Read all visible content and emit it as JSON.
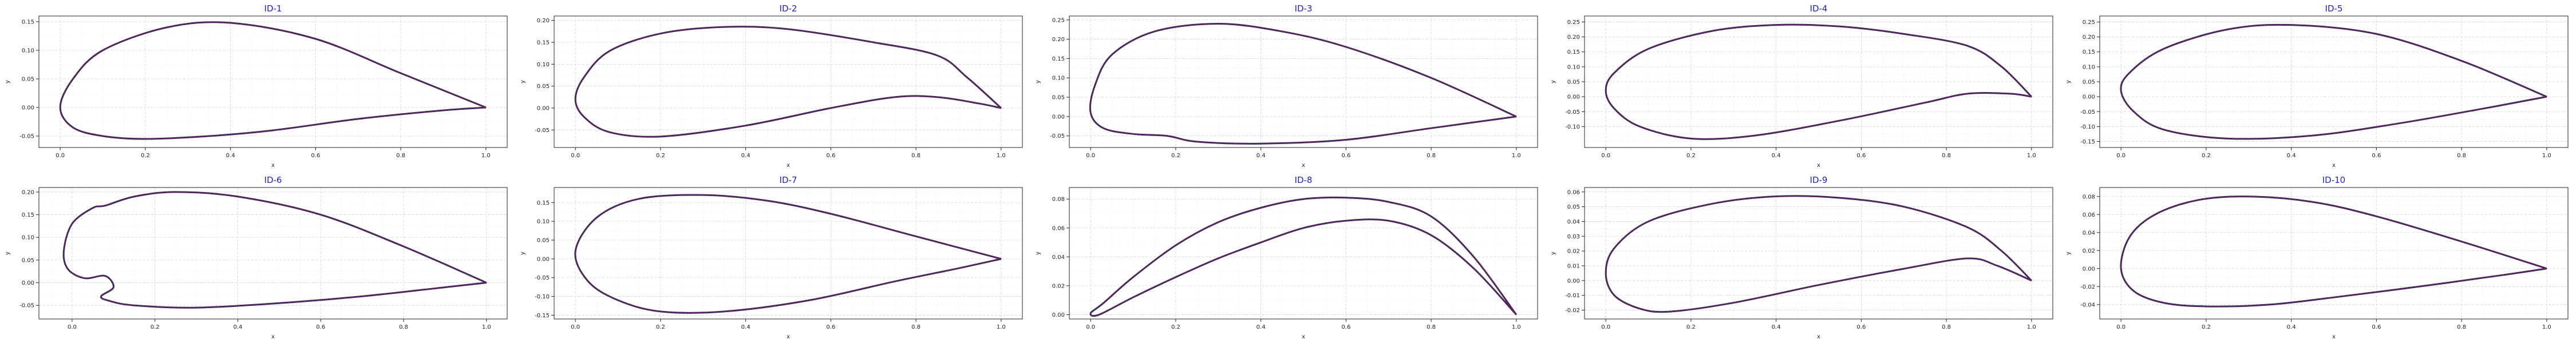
{
  "chart_data": [
    {
      "type": "line",
      "title": "ID-1",
      "xlabel": "x",
      "ylabel": "y",
      "grid": true,
      "xlim": [
        -0.05,
        1.05
      ],
      "ylim": [
        -0.07,
        0.16
      ],
      "xticks": [
        "0.0",
        "0.2",
        "0.4",
        "0.6",
        "0.8",
        "1.0"
      ],
      "xtick_values": [
        0,
        0.2,
        0.4,
        0.6,
        0.8,
        1.0
      ],
      "yticks": [
        "-0.05",
        "0.00",
        "0.05",
        "0.10",
        "0.15"
      ],
      "ytick_values": [
        -0.05,
        0,
        0.05,
        0.1,
        0.15
      ],
      "series": [
        {
          "x": [
            1.0,
            0.8,
            0.6,
            0.4,
            0.25,
            0.1,
            0.03,
            0.0,
            0.03,
            0.1,
            0.2,
            0.35,
            0.5,
            0.7,
            0.9,
            1.0
          ],
          "y": [
            0.0,
            0.06,
            0.12,
            0.148,
            0.14,
            0.1,
            0.05,
            0.0,
            -0.035,
            -0.05,
            -0.055,
            -0.05,
            -0.04,
            -0.02,
            -0.005,
            0.0
          ]
        }
      ]
    },
    {
      "type": "line",
      "title": "ID-2",
      "xlabel": "x",
      "ylabel": "y",
      "grid": true,
      "xlim": [
        -0.05,
        1.05
      ],
      "ylim": [
        -0.09,
        0.21
      ],
      "xticks": [
        "0.0",
        "0.2",
        "0.4",
        "0.6",
        "0.8",
        "1.0"
      ],
      "xtick_values": [
        0,
        0.2,
        0.4,
        0.6,
        0.8,
        1.0
      ],
      "yticks": [
        "-0.05",
        "0.00",
        "0.05",
        "0.10",
        "0.15",
        "0.20"
      ],
      "ytick_values": [
        -0.05,
        0,
        0.05,
        0.1,
        0.15,
        0.2
      ],
      "series": [
        {
          "x": [
            1.0,
            0.92,
            0.85,
            0.7,
            0.5,
            0.35,
            0.2,
            0.08,
            0.02,
            0.0,
            0.02,
            0.08,
            0.2,
            0.4,
            0.6,
            0.75,
            0.85,
            0.95,
            1.0
          ],
          "y": [
            0.0,
            0.07,
            0.12,
            0.15,
            0.18,
            0.185,
            0.17,
            0.13,
            0.07,
            0.02,
            -0.02,
            -0.055,
            -0.065,
            -0.04,
            0.0,
            0.025,
            0.025,
            0.01,
            0.0
          ]
        }
      ]
    },
    {
      "type": "line",
      "title": "ID-3",
      "xlabel": "x",
      "ylabel": "y",
      "grid": true,
      "xlim": [
        -0.05,
        1.05
      ],
      "ylim": [
        -0.08,
        0.26
      ],
      "xticks": [
        "0.0",
        "0.2",
        "0.4",
        "0.6",
        "0.8",
        "1.0"
      ],
      "xtick_values": [
        0,
        0.2,
        0.4,
        0.6,
        0.8,
        1.0
      ],
      "yticks": [
        "-0.05",
        "0.00",
        "0.05",
        "0.10",
        "0.15",
        "0.20",
        "0.25"
      ],
      "ytick_values": [
        -0.05,
        0,
        0.05,
        0.1,
        0.15,
        0.2,
        0.25
      ],
      "series": [
        {
          "x": [
            1.0,
            0.8,
            0.6,
            0.45,
            0.3,
            0.15,
            0.05,
            0.01,
            0.0,
            0.03,
            0.1,
            0.18,
            0.25,
            0.4,
            0.6,
            0.8,
            1.0
          ],
          "y": [
            0.0,
            0.1,
            0.18,
            0.22,
            0.24,
            0.22,
            0.16,
            0.08,
            0.01,
            -0.03,
            -0.045,
            -0.05,
            -0.065,
            -0.07,
            -0.06,
            -0.03,
            0.0
          ]
        }
      ]
    },
    {
      "type": "line",
      "title": "ID-4",
      "xlabel": "x",
      "ylabel": "y",
      "grid": true,
      "xlim": [
        -0.05,
        1.05
      ],
      "ylim": [
        -0.17,
        0.27
      ],
      "xticks": [
        "0.0",
        "0.2",
        "0.4",
        "0.6",
        "0.8",
        "1.0"
      ],
      "xtick_values": [
        0,
        0.2,
        0.4,
        0.6,
        0.8,
        1.0
      ],
      "yticks": [
        "-0.10",
        "-0.05",
        "0.00",
        "0.05",
        "0.10",
        "0.15",
        "0.20",
        "0.25"
      ],
      "ytick_values": [
        -0.1,
        -0.05,
        0,
        0.05,
        0.1,
        0.15,
        0.2,
        0.25
      ],
      "series": [
        {
          "x": [
            1.0,
            0.93,
            0.85,
            0.7,
            0.55,
            0.4,
            0.25,
            0.1,
            0.02,
            0.0,
            0.02,
            0.08,
            0.2,
            0.35,
            0.55,
            0.75,
            0.85,
            0.95,
            1.0
          ],
          "y": [
            0.0,
            0.1,
            0.17,
            0.21,
            0.235,
            0.24,
            0.22,
            0.16,
            0.08,
            0.02,
            -0.04,
            -0.1,
            -0.14,
            -0.13,
            -0.08,
            -0.02,
            0.01,
            0.01,
            0.0
          ]
        }
      ]
    },
    {
      "type": "line",
      "title": "ID-5",
      "xlabel": "x",
      "ylabel": "y",
      "grid": true,
      "xlim": [
        -0.05,
        1.05
      ],
      "ylim": [
        -0.17,
        0.27
      ],
      "xticks": [
        "0.0",
        "0.2",
        "0.4",
        "0.6",
        "0.8",
        "1.0"
      ],
      "xtick_values": [
        0,
        0.2,
        0.4,
        0.6,
        0.8,
        1.0
      ],
      "yticks": [
        "-0.15",
        "-0.10",
        "-0.05",
        "0.00",
        "0.05",
        "0.10",
        "0.15",
        "0.20",
        "0.25"
      ],
      "ytick_values": [
        -0.15,
        -0.1,
        -0.05,
        0,
        0.05,
        0.1,
        0.15,
        0.2,
        0.25
      ],
      "series": [
        {
          "x": [
            1.0,
            0.8,
            0.6,
            0.4,
            0.25,
            0.1,
            0.02,
            0.0,
            0.03,
            0.1,
            0.25,
            0.45,
            0.65,
            0.85,
            1.0
          ],
          "y": [
            0.0,
            0.12,
            0.21,
            0.24,
            0.225,
            0.16,
            0.08,
            0.02,
            -0.05,
            -0.11,
            -0.14,
            -0.13,
            -0.09,
            -0.04,
            0.0
          ]
        }
      ]
    },
    {
      "type": "line",
      "title": "ID-6",
      "xlabel": "x",
      "ylabel": "y",
      "grid": true,
      "xlim": [
        -0.08,
        1.05
      ],
      "ylim": [
        -0.08,
        0.21
      ],
      "xticks": [
        "0.0",
        "0.2",
        "0.4",
        "0.6",
        "0.8",
        "1.0"
      ],
      "xtick_values": [
        0,
        0.2,
        0.4,
        0.6,
        0.8,
        1.0
      ],
      "yticks": [
        "-0.05",
        "0.00",
        "0.05",
        "0.10",
        "0.15",
        "0.20"
      ],
      "ytick_values": [
        -0.05,
        0,
        0.05,
        0.1,
        0.15,
        0.2
      ],
      "series": [
        {
          "x": [
            1.0,
            0.8,
            0.6,
            0.4,
            0.25,
            0.15,
            0.08,
            0.05,
            0.0,
            -0.02,
            -0.01,
            0.03,
            0.08,
            0.1,
            0.07,
            0.09,
            0.15,
            0.3,
            0.5,
            0.7,
            0.9,
            1.0
          ],
          "y": [
            0.0,
            0.08,
            0.15,
            0.19,
            0.2,
            0.19,
            0.17,
            0.165,
            0.13,
            0.07,
            0.03,
            0.01,
            0.015,
            -0.01,
            -0.03,
            -0.04,
            -0.05,
            -0.055,
            -0.045,
            -0.03,
            -0.01,
            0.0
          ]
        }
      ]
    },
    {
      "type": "line",
      "title": "ID-7",
      "xlabel": "x",
      "ylabel": "y",
      "grid": true,
      "xlim": [
        -0.05,
        1.05
      ],
      "ylim": [
        -0.16,
        0.19
      ],
      "xticks": [
        "0.0",
        "0.2",
        "0.4",
        "0.6",
        "0.8",
        "1.0"
      ],
      "xtick_values": [
        0,
        0.2,
        0.4,
        0.6,
        0.8,
        1.0
      ],
      "yticks": [
        "-0.15",
        "-0.10",
        "-0.05",
        "0.00",
        "0.05",
        "0.10",
        "0.15"
      ],
      "ytick_values": [
        -0.15,
        -0.1,
        -0.05,
        0,
        0.05,
        0.1,
        0.15
      ],
      "series": [
        {
          "x": [
            1.0,
            0.8,
            0.6,
            0.45,
            0.3,
            0.15,
            0.05,
            0.0,
            0.03,
            0.1,
            0.2,
            0.35,
            0.55,
            0.75,
            0.9,
            1.0
          ],
          "y": [
            0.0,
            0.06,
            0.12,
            0.155,
            0.17,
            0.16,
            0.11,
            0.02,
            -0.06,
            -0.11,
            -0.14,
            -0.14,
            -0.11,
            -0.06,
            -0.025,
            0.0
          ]
        }
      ]
    },
    {
      "type": "line",
      "title": "ID-8",
      "xlabel": "x",
      "ylabel": "y",
      "grid": true,
      "xlim": [
        -0.05,
        1.05
      ],
      "ylim": [
        -0.003,
        0.088
      ],
      "xticks": [
        "0.0",
        "0.2",
        "0.4",
        "0.6",
        "0.8",
        "1.0"
      ],
      "xtick_values": [
        0,
        0.2,
        0.4,
        0.6,
        0.8,
        1.0
      ],
      "yticks": [
        "0.00",
        "0.02",
        "0.04",
        "0.06",
        "0.08"
      ],
      "ytick_values": [
        0,
        0.02,
        0.04,
        0.06,
        0.08
      ],
      "series": [
        {
          "x": [
            1.0,
            0.9,
            0.8,
            0.7,
            0.6,
            0.5,
            0.4,
            0.3,
            0.2,
            0.1,
            0.03,
            0.0,
            0.02,
            0.1,
            0.2,
            0.3,
            0.4,
            0.5,
            0.6,
            0.7,
            0.8,
            0.9,
            1.0
          ],
          "y": [
            0.0,
            0.04,
            0.068,
            0.078,
            0.081,
            0.08,
            0.074,
            0.064,
            0.048,
            0.026,
            0.008,
            0.001,
            0.0,
            0.012,
            0.026,
            0.039,
            0.05,
            0.06,
            0.065,
            0.065,
            0.055,
            0.032,
            0.0
          ]
        }
      ]
    },
    {
      "type": "line",
      "title": "ID-9",
      "xlabel": "x",
      "ylabel": "y",
      "grid": true,
      "xlim": [
        -0.05,
        1.05
      ],
      "ylim": [
        -0.026,
        0.063
      ],
      "xticks": [
        "0.0",
        "0.2",
        "0.4",
        "0.6",
        "0.8",
        "1.0"
      ],
      "xtick_values": [
        0,
        0.2,
        0.4,
        0.6,
        0.8,
        1.0
      ],
      "yticks": [
        "-0.02",
        "-0.01",
        "0.00",
        "0.01",
        "0.02",
        "0.03",
        "0.04",
        "0.05",
        "0.06"
      ],
      "ytick_values": [
        -0.02,
        -0.01,
        0,
        0.01,
        0.02,
        0.03,
        0.04,
        0.05,
        0.06
      ],
      "series": [
        {
          "x": [
            1.0,
            0.93,
            0.85,
            0.7,
            0.55,
            0.4,
            0.25,
            0.1,
            0.02,
            0.0,
            0.02,
            0.08,
            0.15,
            0.3,
            0.5,
            0.7,
            0.85,
            0.92,
            1.0
          ],
          "y": [
            0.0,
            0.02,
            0.036,
            0.05,
            0.056,
            0.057,
            0.052,
            0.04,
            0.022,
            0.005,
            -0.01,
            -0.019,
            -0.021,
            -0.015,
            -0.003,
            0.008,
            0.015,
            0.01,
            0.0
          ]
        }
      ]
    },
    {
      "type": "line",
      "title": "ID-10",
      "xlabel": "x",
      "ylabel": "y",
      "grid": true,
      "xlim": [
        -0.05,
        1.05
      ],
      "ylim": [
        -0.056,
        0.09
      ],
      "xticks": [
        "0.0",
        "0.2",
        "0.4",
        "0.6",
        "0.8",
        "1.0"
      ],
      "xtick_values": [
        0,
        0.2,
        0.4,
        0.6,
        0.8,
        1.0
      ],
      "yticks": [
        "-0.04",
        "-0.02",
        "0.00",
        "0.02",
        "0.04",
        "0.06",
        "0.08"
      ],
      "ytick_values": [
        -0.04,
        -0.02,
        0,
        0.02,
        0.04,
        0.06,
        0.08
      ],
      "series": [
        {
          "x": [
            1.0,
            0.8,
            0.6,
            0.45,
            0.3,
            0.18,
            0.08,
            0.02,
            0.0,
            0.03,
            0.1,
            0.2,
            0.35,
            0.5,
            0.7,
            0.9,
            1.0
          ],
          "y": [
            0.0,
            0.03,
            0.058,
            0.074,
            0.08,
            0.076,
            0.06,
            0.035,
            0.0,
            -0.025,
            -0.038,
            -0.042,
            -0.04,
            -0.032,
            -0.02,
            -0.007,
            0.0
          ]
        }
      ]
    }
  ],
  "colors": {
    "line": "#2a2a5a",
    "points": "#c2185b",
    "title": "#1f1fcf",
    "grid": "#d4d4d4"
  }
}
